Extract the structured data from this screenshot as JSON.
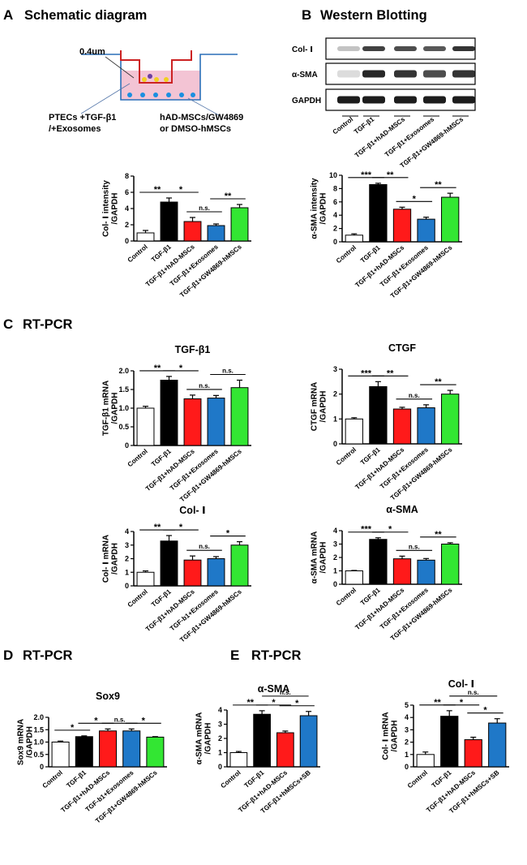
{
  "sections": {
    "a": {
      "letter": "A",
      "title": "Schematic diagram"
    },
    "b": {
      "letter": "B",
      "title": "Western Blotting"
    },
    "c": {
      "letter": "C",
      "title": "RT-PCR"
    },
    "d": {
      "letter": "D",
      "title": "RT-PCR"
    },
    "e": {
      "letter": "E",
      "title": "RT-PCR"
    }
  },
  "schematic": {
    "pore_label": "0.4um",
    "left_line1": "PTECs +TGF-β1",
    "left_line2": "/+Exosomes",
    "right_line1": "hAD-MSCs/GW4869",
    "right_line2": "or DMSO-hMSCs"
  },
  "western": {
    "bands": [
      "Col- Ⅰ",
      "α-SMA",
      "GAPDH"
    ],
    "lanes": [
      "Control",
      "TGF-β1",
      "TGF-β1+hAD-MSCs",
      "TGF-β1+Exosomes",
      "TGF-β1+GW4869-hMSCs"
    ]
  },
  "colors": {
    "white": "#ffffff",
    "black": "#000000",
    "red": "#ff1a1a",
    "blue": "#1f78c8",
    "green": "#33e633"
  },
  "chart_data": [
    {
      "id": "b_col1",
      "type": "bar",
      "title": "",
      "ylabel": "Col- Ⅰ intensity\n/GAPDH",
      "ylim": [
        0,
        8
      ],
      "yticks": [
        0,
        2,
        4,
        6,
        8
      ],
      "categories": [
        "Control",
        "TGF-β1",
        "TGF-β1+hAD-MSCs",
        "TGF-β1+Exosomes",
        "TGF-β1+GW4869-hMSCs"
      ],
      "values": [
        1.0,
        4.8,
        2.4,
        1.9,
        4.1
      ],
      "errors": [
        0.3,
        0.5,
        0.5,
        0.2,
        0.4
      ],
      "colors": [
        "white",
        "black",
        "red",
        "blue",
        "green"
      ],
      "annotations": [
        {
          "from": 0,
          "to": 1,
          "label": "**"
        },
        {
          "from": 1,
          "to": 2,
          "label": "*"
        },
        {
          "from": 2,
          "to": 3,
          "label": "n.s."
        },
        {
          "from": 3,
          "to": 4,
          "label": "**"
        }
      ]
    },
    {
      "id": "b_asma",
      "type": "bar",
      "title": "",
      "ylabel": "α-SMA intensity\n/GAPDH",
      "ylim": [
        0,
        10
      ],
      "yticks": [
        0,
        2,
        4,
        6,
        8,
        10
      ],
      "categories": [
        "Control",
        "TGF-β1",
        "TGF-β1+hAD-MSCs",
        "TGF-β1+Exosomes",
        "TGF-β1+GW4869-hMSCs"
      ],
      "values": [
        1.0,
        8.6,
        4.9,
        3.4,
        6.7
      ],
      "errors": [
        0.2,
        0.2,
        0.3,
        0.3,
        0.6
      ],
      "colors": [
        "white",
        "black",
        "red",
        "blue",
        "green"
      ],
      "annotations": [
        {
          "from": 0,
          "to": 1,
          "label": "***"
        },
        {
          "from": 1,
          "to": 2,
          "label": "**"
        },
        {
          "from": 2,
          "to": 3,
          "label": "*"
        },
        {
          "from": 3,
          "to": 4,
          "label": "**"
        }
      ]
    },
    {
      "id": "c_tgfb1",
      "type": "bar",
      "title": "TGF-β1",
      "ylabel": "TGF-β1 mRNA\n/GAPDH",
      "ylim": [
        0,
        2.0
      ],
      "yticks": [
        0,
        0.5,
        1.0,
        1.5,
        2.0
      ],
      "categories": [
        "Control",
        "TGF-β1",
        "TGF-β1+hAD-MSCs",
        "TGF-β1+Exosomes",
        "TGF-β1+GW4869-hMSCs"
      ],
      "values": [
        1.0,
        1.75,
        1.25,
        1.27,
        1.55
      ],
      "errors": [
        0.05,
        0.1,
        0.1,
        0.07,
        0.2
      ],
      "colors": [
        "white",
        "black",
        "red",
        "blue",
        "green"
      ],
      "annotations": [
        {
          "from": 0,
          "to": 1,
          "label": "**"
        },
        {
          "from": 1,
          "to": 2,
          "label": "*"
        },
        {
          "from": 2,
          "to": 3,
          "label": "n.s."
        },
        {
          "from": 3,
          "to": 4,
          "label": "n.s."
        }
      ]
    },
    {
      "id": "c_ctgf",
      "type": "bar",
      "title": "CTGF",
      "ylabel": "CTGF mRNA\n/GAPDH",
      "ylim": [
        0,
        3
      ],
      "yticks": [
        0,
        1,
        2,
        3
      ],
      "categories": [
        "Control",
        "TGF-β1",
        "TGF-β1+hAD-MSCs",
        "TGF-β1+Exosomes",
        "TGF-β1+GW4869-hMSCs"
      ],
      "values": [
        1.0,
        2.3,
        1.4,
        1.45,
        2.0
      ],
      "errors": [
        0.05,
        0.2,
        0.07,
        0.12,
        0.15
      ],
      "colors": [
        "white",
        "black",
        "red",
        "blue",
        "green"
      ],
      "annotations": [
        {
          "from": 0,
          "to": 1,
          "label": "***"
        },
        {
          "from": 1,
          "to": 2,
          "label": "**"
        },
        {
          "from": 2,
          "to": 3,
          "label": "n.s."
        },
        {
          "from": 3,
          "to": 4,
          "label": "**"
        }
      ]
    },
    {
      "id": "c_col1",
      "type": "bar",
      "title": "Col- Ⅰ",
      "ylabel": "Col- Ⅰ mRNA\n/GAPDH",
      "ylim": [
        0,
        4
      ],
      "yticks": [
        0,
        1,
        2,
        3,
        4
      ],
      "categories": [
        "Control",
        "TGF-β1",
        "TGF-β1+hAD-MSCs",
        "TGF-b1+Exosomes",
        "TGF-β1+GW4869-hMSCs"
      ],
      "values": [
        1.0,
        3.3,
        1.9,
        2.0,
        3.0
      ],
      "errors": [
        0.1,
        0.4,
        0.3,
        0.15,
        0.25
      ],
      "colors": [
        "white",
        "black",
        "red",
        "blue",
        "green"
      ],
      "annotations": [
        {
          "from": 0,
          "to": 1,
          "label": "**"
        },
        {
          "from": 1,
          "to": 2,
          "label": "*"
        },
        {
          "from": 2,
          "to": 3,
          "label": "n.s."
        },
        {
          "from": 3,
          "to": 4,
          "label": "*"
        }
      ]
    },
    {
      "id": "c_asma",
      "type": "bar",
      "title": "α-SMA",
      "ylabel": "α-SMA mRNA\n/GAPDH",
      "ylim": [
        0,
        4
      ],
      "yticks": [
        0,
        1,
        2,
        3,
        4
      ],
      "categories": [
        "Control",
        "TGF-β1",
        "TGF-β1+hAD-MSCs",
        "TGF-β1+Exosomes",
        "TGF-β1+GW4869-hMSCs"
      ],
      "values": [
        1.0,
        3.35,
        1.9,
        1.8,
        3.0
      ],
      "errors": [
        0.03,
        0.12,
        0.2,
        0.12,
        0.1
      ],
      "colors": [
        "white",
        "black",
        "red",
        "blue",
        "green"
      ],
      "annotations": [
        {
          "from": 0,
          "to": 1,
          "label": "***"
        },
        {
          "from": 1,
          "to": 2,
          "label": "*"
        },
        {
          "from": 2,
          "to": 3,
          "label": "n.s."
        },
        {
          "from": 3,
          "to": 4,
          "label": "**"
        }
      ]
    },
    {
      "id": "d_sox9",
      "type": "bar",
      "title": "Sox9",
      "ylabel": "Sox9 mRNA\n/GAPDH",
      "ylim": [
        0,
        2.0
      ],
      "yticks": [
        0,
        0.5,
        1.0,
        1.5,
        2.0
      ],
      "categories": [
        "Control",
        "TGF-β1",
        "TGF-β1+hAD-MSCs",
        "TGF-b1+Exosomes",
        "TGF-β1+GW4869-hMSCs"
      ],
      "values": [
        1.0,
        1.22,
        1.45,
        1.45,
        1.2
      ],
      "errors": [
        0.04,
        0.03,
        0.08,
        0.08,
        0.02
      ],
      "colors": [
        "white",
        "black",
        "red",
        "blue",
        "green"
      ],
      "annotations": [
        {
          "from": 0,
          "to": 1,
          "label": "*"
        },
        {
          "from": 1,
          "to": 2,
          "label": "*"
        },
        {
          "from": 2,
          "to": 3,
          "label": "n.s."
        },
        {
          "from": 3,
          "to": 4,
          "label": "*"
        }
      ]
    },
    {
      "id": "e_asma",
      "type": "bar",
      "title": "α-SMA",
      "ylabel": "α-SMA mRNA\n/GAPDH",
      "ylim": [
        0,
        4
      ],
      "yticks": [
        0,
        1,
        2,
        3,
        4
      ],
      "categories": [
        "Control",
        "TGF-β1",
        "TGF-β1+hAD-MSCs",
        "TGF-β1+hMSCs+SB"
      ],
      "values": [
        1.0,
        3.7,
        2.4,
        3.6
      ],
      "errors": [
        0.08,
        0.25,
        0.12,
        0.3
      ],
      "colors": [
        "white",
        "black",
        "red",
        "blue"
      ],
      "annotations": [
        {
          "from": 0,
          "to": 1,
          "label": "**"
        },
        {
          "from": 1,
          "to": 2,
          "label": "*"
        },
        {
          "from": 2,
          "to": 3,
          "label": "*"
        },
        {
          "from": 1,
          "to": 3,
          "label": "n.s.",
          "level": 2
        }
      ]
    },
    {
      "id": "e_col1",
      "type": "bar",
      "title": "Col- Ⅰ",
      "ylabel": "Col- Ⅰ mRNA\n/GAPDH",
      "ylim": [
        0,
        5
      ],
      "yticks": [
        0,
        1,
        2,
        3,
        4,
        5
      ],
      "categories": [
        "Control",
        "TGF-β1",
        "TGF-β1+hAD-MSCs",
        "TGF-β1+hMSCs+SB"
      ],
      "values": [
        1.0,
        4.1,
        2.2,
        3.55
      ],
      "errors": [
        0.2,
        0.45,
        0.2,
        0.35
      ],
      "colors": [
        "white",
        "black",
        "red",
        "blue"
      ],
      "annotations": [
        {
          "from": 0,
          "to": 1,
          "label": "**"
        },
        {
          "from": 1,
          "to": 2,
          "label": "*"
        },
        {
          "from": 2,
          "to": 3,
          "label": "*"
        },
        {
          "from": 1,
          "to": 3,
          "label": "n.s.",
          "level": 2
        }
      ]
    }
  ]
}
